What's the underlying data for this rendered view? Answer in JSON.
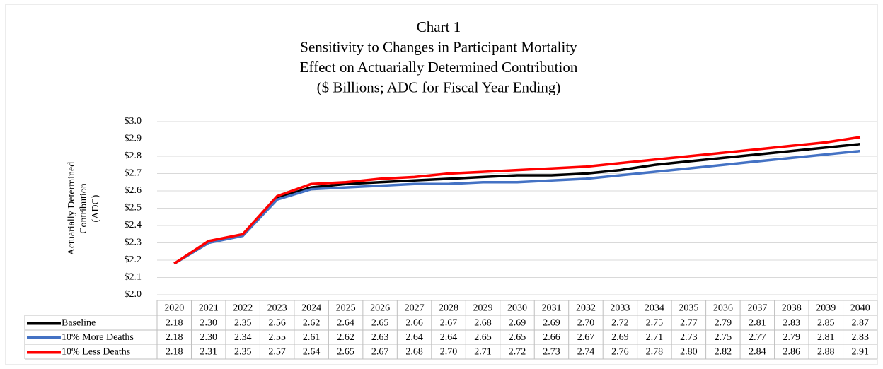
{
  "chart_data": {
    "type": "line",
    "title_lines": [
      "Chart 1",
      "Sensitivity to Changes in Participant Mortality",
      "Effect on Actuarially Determined Contribution",
      "($ Billions;  ADC for Fiscal Year Ending)"
    ],
    "ylabel_lines": [
      "Actuarially Determined",
      "Contribution",
      "(ADC)"
    ],
    "categories": [
      "2020",
      "2021",
      "2022",
      "2023",
      "2024",
      "2025",
      "2026",
      "2027",
      "2028",
      "2029",
      "2030",
      "2031",
      "2032",
      "2033",
      "2034",
      "2035",
      "2036",
      "2037",
      "2038",
      "2039",
      "2040"
    ],
    "series": [
      {
        "name": "Baseline",
        "color": "#000000",
        "values": [
          2.18,
          2.3,
          2.35,
          2.56,
          2.62,
          2.64,
          2.65,
          2.66,
          2.67,
          2.68,
          2.69,
          2.69,
          2.7,
          2.72,
          2.75,
          2.77,
          2.79,
          2.81,
          2.83,
          2.85,
          2.87
        ],
        "value_labels": [
          "2.18",
          "2.30",
          "2.35",
          "2.56",
          "2.62",
          "2.64",
          "2.65",
          "2.66",
          "2.67",
          "2.68",
          "2.69",
          "2.69",
          "2.70",
          "2.72",
          "2.75",
          "2.77",
          "2.79",
          "2.81",
          "2.83",
          "2.85",
          "2.87"
        ]
      },
      {
        "name": "10% More Deaths",
        "color": "#4472c4",
        "values": [
          2.18,
          2.3,
          2.34,
          2.55,
          2.61,
          2.62,
          2.63,
          2.64,
          2.64,
          2.65,
          2.65,
          2.66,
          2.67,
          2.69,
          2.71,
          2.73,
          2.75,
          2.77,
          2.79,
          2.81,
          2.83
        ],
        "value_labels": [
          "2.18",
          "2.30",
          "2.34",
          "2.55",
          "2.61",
          "2.62",
          "2.63",
          "2.64",
          "2.64",
          "2.65",
          "2.65",
          "2.66",
          "2.67",
          "2.69",
          "2.71",
          "2.73",
          "2.75",
          "2.77",
          "2.79",
          "2.81",
          "2.83"
        ]
      },
      {
        "name": "10% Less Deaths",
        "color": "#ff0000",
        "values": [
          2.18,
          2.31,
          2.35,
          2.57,
          2.64,
          2.65,
          2.67,
          2.68,
          2.7,
          2.71,
          2.72,
          2.73,
          2.74,
          2.76,
          2.78,
          2.8,
          2.82,
          2.84,
          2.86,
          2.88,
          2.91
        ],
        "value_labels": [
          "2.18",
          "2.31",
          "2.35",
          "2.57",
          "2.64",
          "2.65",
          "2.67",
          "2.68",
          "2.70",
          "2.71",
          "2.72",
          "2.73",
          "2.74",
          "2.76",
          "2.78",
          "2.80",
          "2.82",
          "2.84",
          "2.86",
          "2.88",
          "2.91"
        ]
      }
    ],
    "ylim": [
      2.0,
      3.0
    ],
    "yticks": [
      {
        "value": 2.0,
        "label": "$2.0"
      },
      {
        "value": 2.1,
        "label": "$2.1"
      },
      {
        "value": 2.2,
        "label": "$2.2"
      },
      {
        "value": 2.3,
        "label": "$2.3"
      },
      {
        "value": 2.4,
        "label": "$2.4"
      },
      {
        "value": 2.5,
        "label": "$2.5"
      },
      {
        "value": 2.6,
        "label": "$2.6"
      },
      {
        "value": 2.7,
        "label": "$2.7"
      },
      {
        "value": 2.8,
        "label": "$2.8"
      },
      {
        "value": 2.9,
        "label": "$2.9"
      },
      {
        "value": 3.0,
        "label": "$3.0"
      }
    ],
    "grid": true
  }
}
